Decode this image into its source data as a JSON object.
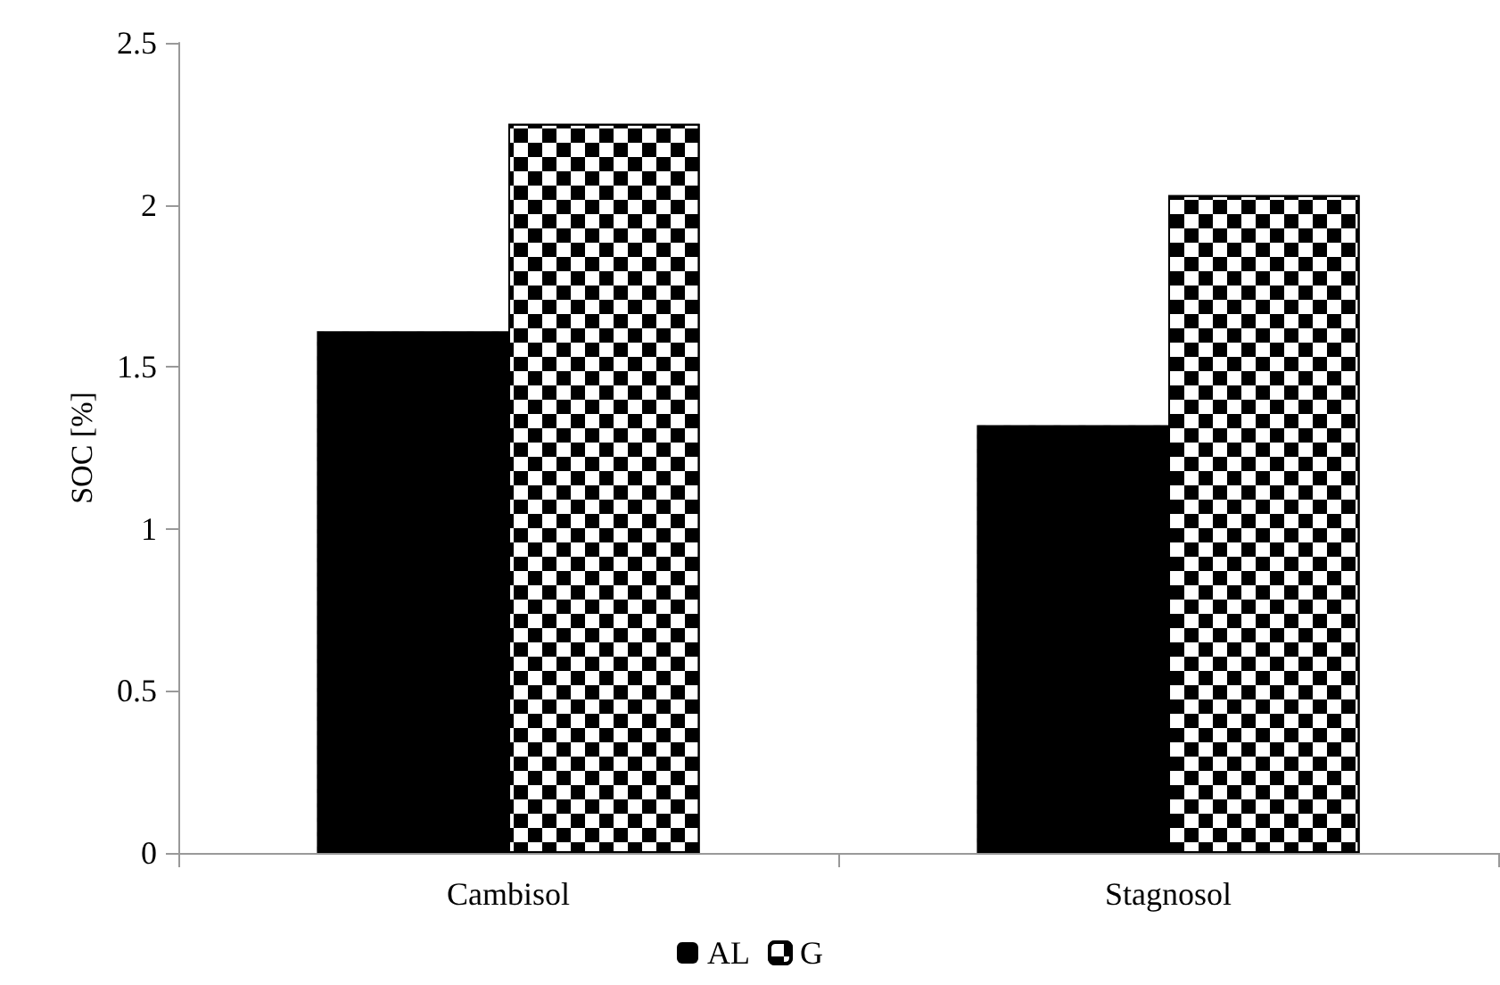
{
  "chart_data": {
    "type": "bar",
    "ylabel": "SOC [%]",
    "categories": [
      "Cambisol",
      "Stagnosol"
    ],
    "series": [
      {
        "name": "AL",
        "color": "#000000",
        "values": [
          1.61,
          1.32
        ]
      },
      {
        "name": "G",
        "color": "#000000",
        "values": [
          2.25,
          2.03
        ]
      }
    ],
    "ylim": [
      0,
      2.5
    ],
    "yticks": [
      0,
      0.5,
      1,
      1.5,
      2,
      2.5
    ],
    "grid": false,
    "legend": "bottom"
  }
}
